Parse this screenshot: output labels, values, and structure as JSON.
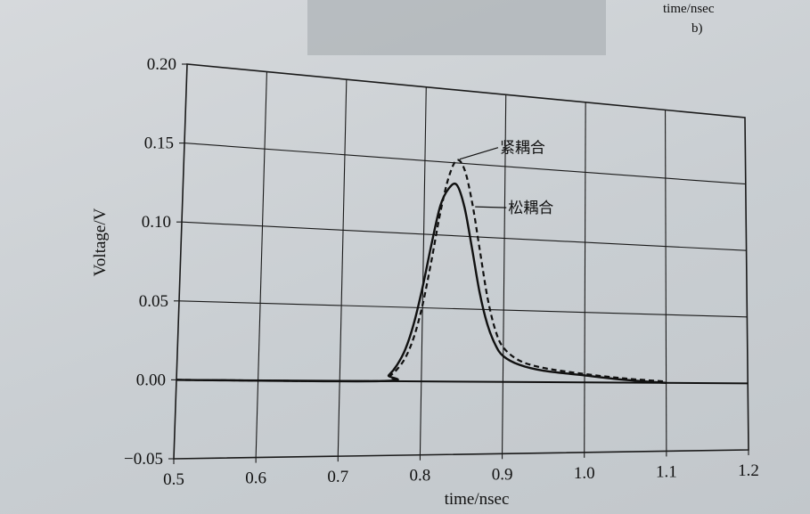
{
  "top_right_label": "time/nsec",
  "panel_label": "b)",
  "chart_data": {
    "type": "line",
    "xlabel": "time/nsec",
    "ylabel": "Voltage/V",
    "xlim": [
      0.5,
      1.2
    ],
    "ylim": [
      -0.05,
      0.2
    ],
    "x_ticks": [
      {
        "value": 0.5,
        "label": "0.5"
      },
      {
        "value": 0.6,
        "label": "0.6"
      },
      {
        "value": 0.7,
        "label": "0.7"
      },
      {
        "value": 0.8,
        "label": "0.8"
      },
      {
        "value": 0.9,
        "label": "0.9"
      },
      {
        "value": 1.0,
        "label": "1.0"
      },
      {
        "value": 1.1,
        "label": "1.1"
      },
      {
        "value": 1.2,
        "label": "1.2"
      }
    ],
    "y_ticks": [
      {
        "value": -0.05,
        "label": "−0.05"
      },
      {
        "value": 0.0,
        "label": "0.00"
      },
      {
        "value": 0.05,
        "label": "0.05"
      },
      {
        "value": 0.1,
        "label": "0.10"
      },
      {
        "value": 0.15,
        "label": "0.15"
      },
      {
        "value": 0.2,
        "label": "0.20"
      }
    ],
    "grid": true,
    "series": [
      {
        "name": "紧耦合",
        "style": "dashed",
        "color": "#111111",
        "x": [
          0.5,
          0.75,
          0.76,
          0.77,
          0.78,
          0.79,
          0.8,
          0.81,
          0.82,
          0.83,
          0.84,
          0.85,
          0.86,
          0.87,
          0.88,
          0.89,
          0.9,
          0.92,
          0.95,
          1.0,
          1.05,
          1.1
        ],
        "y": [
          0.0,
          0.0,
          0.003,
          0.008,
          0.016,
          0.03,
          0.052,
          0.082,
          0.115,
          0.14,
          0.152,
          0.145,
          0.122,
          0.09,
          0.058,
          0.036,
          0.024,
          0.015,
          0.01,
          0.006,
          0.003,
          0.001
        ]
      },
      {
        "name": "松耦合",
        "style": "solid",
        "color": "#111111",
        "x": [
          0.5,
          0.75,
          0.76,
          0.77,
          0.78,
          0.79,
          0.8,
          0.81,
          0.82,
          0.83,
          0.84,
          0.85,
          0.86,
          0.87,
          0.88,
          0.89,
          0.9,
          0.92,
          0.95,
          1.0,
          1.05,
          1.1
        ],
        "y": [
          0.0,
          0.0,
          0.004,
          0.011,
          0.022,
          0.04,
          0.065,
          0.094,
          0.12,
          0.132,
          0.135,
          0.12,
          0.092,
          0.062,
          0.04,
          0.026,
          0.018,
          0.012,
          0.008,
          0.005,
          0.002,
          0.0
        ]
      }
    ],
    "annotations": [
      {
        "text": "紧耦合",
        "series": "紧耦合",
        "x": 0.84,
        "y": 0.152
      },
      {
        "text": "松耦合",
        "series": "松耦合",
        "x": 0.86,
        "y": 0.12
      }
    ]
  }
}
